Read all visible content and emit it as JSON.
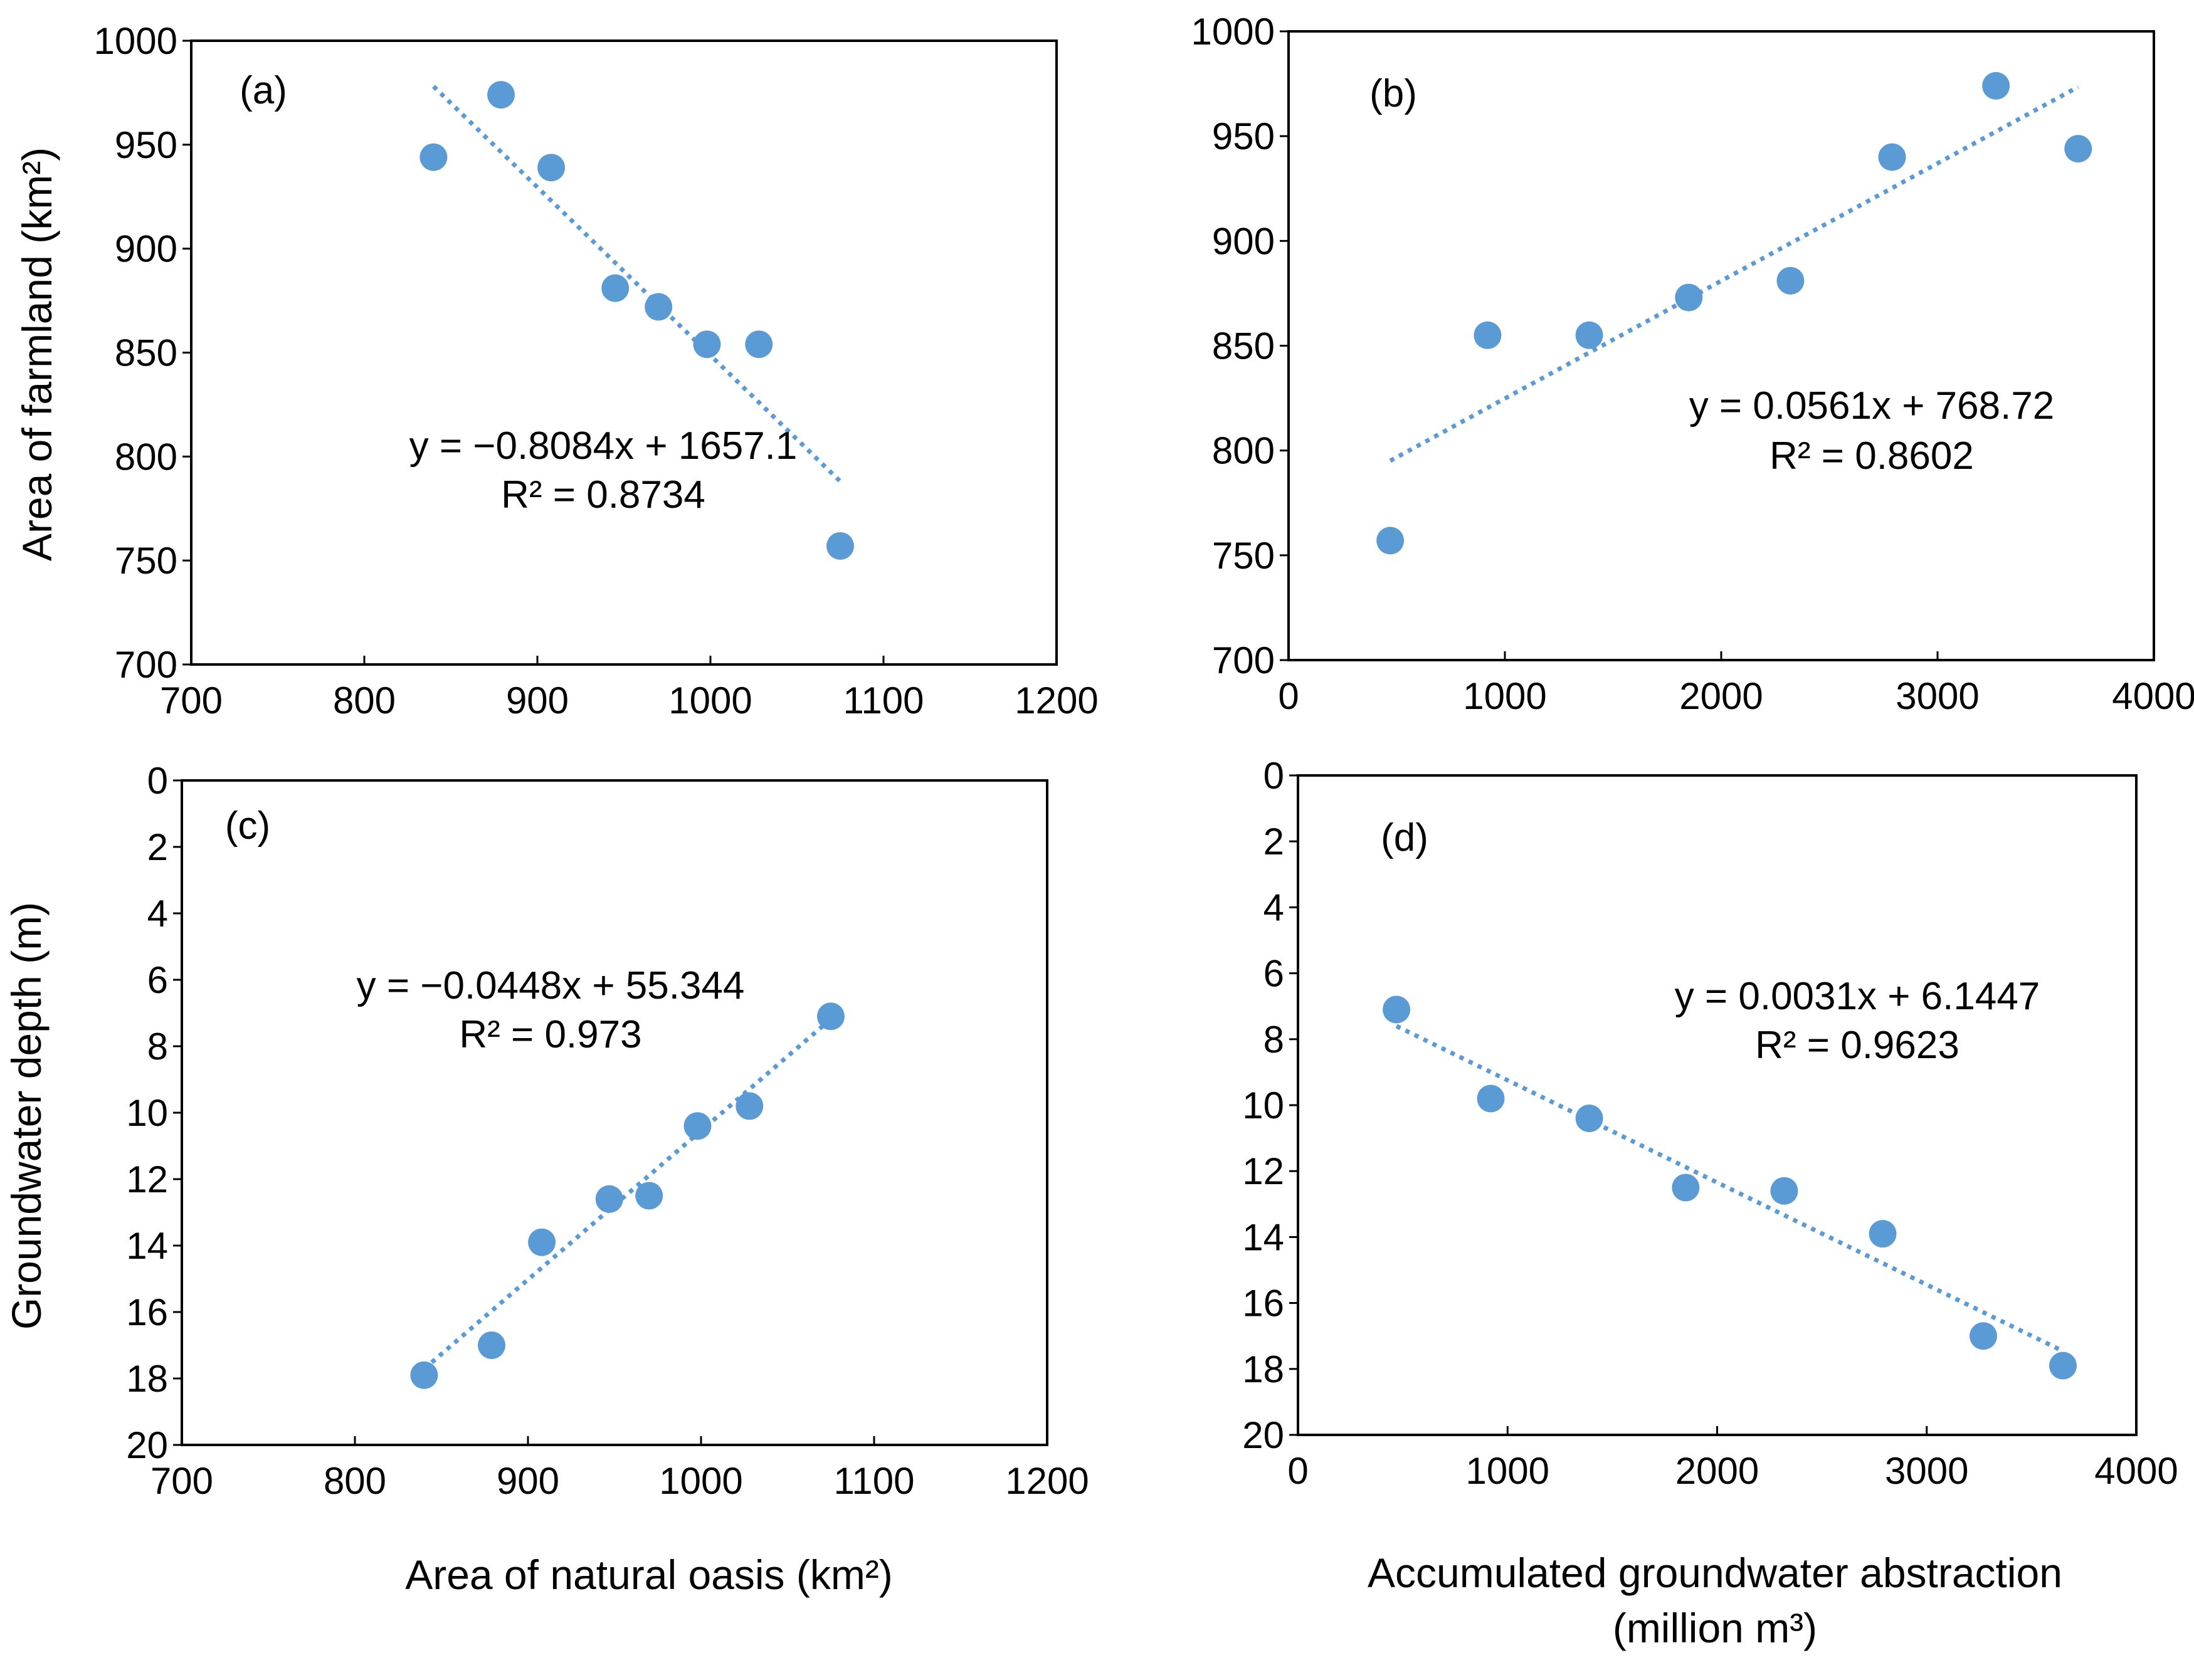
{
  "chart_data": [
    {
      "type": "scatter",
      "panel_label": "(a)",
      "ylabel": "Area of farmland (km²)",
      "xlabel": "",
      "xlim": [
        700,
        1200
      ],
      "ylim": [
        700,
        1000
      ],
      "xticks": [
        "700",
        "800",
        "900",
        "1000",
        "1100",
        "1200"
      ],
      "yticks": [
        "700",
        "750",
        "800",
        "850",
        "900",
        "950",
        "1000"
      ],
      "y_inverted": false,
      "x": [
        840,
        879,
        908,
        945,
        970,
        998,
        1028,
        1075
      ],
      "y": [
        944,
        974,
        939,
        881,
        872,
        854,
        854,
        757
      ],
      "trendline": {
        "x_range": [
          840,
          1075
        ],
        "slope": -0.8084,
        "intercept": 1657.1
      },
      "equation": "y = −0.8084x + 1657.1",
      "r_squared": "R² = 0.8734",
      "marker_color": "#5B9BD5"
    },
    {
      "type": "scatter",
      "panel_label": "(b)",
      "ylabel": "",
      "xlabel": "",
      "xlim": [
        0,
        4000
      ],
      "ylim": [
        700,
        1000
      ],
      "xticks": [
        "0",
        "1000",
        "2000",
        "3000",
        "4000"
      ],
      "yticks": [
        "700",
        "750",
        "800",
        "850",
        "900",
        "950",
        "1000"
      ],
      "y_inverted": false,
      "x": [
        470,
        920,
        1390,
        1850,
        2320,
        2790,
        3270,
        3650
      ],
      "y": [
        757,
        855,
        855,
        873,
        881,
        940,
        974,
        944
      ],
      "trendline": {
        "x_range": [
          470,
          3650
        ],
        "slope": 0.0561,
        "intercept": 768.72
      },
      "equation": "y = 0.0561x + 768.72",
      "r_squared": "R² = 0.8602",
      "marker_color": "#5B9BD5"
    },
    {
      "type": "scatter",
      "panel_label": "(c)",
      "ylabel": "Groundwater depth (m)",
      "xlabel": "Area of natural oasis (km²)",
      "xlim": [
        700,
        1200
      ],
      "ylim": [
        0,
        20
      ],
      "xticks": [
        "700",
        "800",
        "900",
        "1000",
        "1100",
        "1200"
      ],
      "yticks": [
        "0",
        "2",
        "4",
        "6",
        "8",
        "10",
        "12",
        "14",
        "16",
        "18",
        "20"
      ],
      "y_inverted": true,
      "x": [
        840,
        879,
        908,
        947,
        970,
        998,
        1028,
        1075
      ],
      "y": [
        17.9,
        17.0,
        13.9,
        12.6,
        12.5,
        10.4,
        9.8,
        7.1
      ],
      "trendline": {
        "x_range": [
          840,
          1075
        ],
        "slope": -0.0448,
        "intercept": 55.344
      },
      "equation": "y = −0.0448x + 55.344",
      "r_squared": "R² = 0.973",
      "marker_color": "#5B9BD5"
    },
    {
      "type": "scatter",
      "panel_label": "(d)",
      "ylabel": "",
      "xlabel": "Accumulated groundwater abstraction (million m³)",
      "xlim": [
        0,
        4000
      ],
      "ylim": [
        0,
        20
      ],
      "xticks": [
        "0",
        "1000",
        "2000",
        "3000",
        "4000"
      ],
      "yticks": [
        "0",
        "2",
        "4",
        "6",
        "8",
        "10",
        "12",
        "14",
        "16",
        "18",
        "20"
      ],
      "y_inverted": true,
      "x": [
        470,
        920,
        1390,
        1850,
        2320,
        2790,
        3270,
        3650
      ],
      "y": [
        7.1,
        9.8,
        10.4,
        12.5,
        12.6,
        13.9,
        17.0,
        17.9
      ],
      "trendline": {
        "x_range": [
          470,
          3650
        ],
        "slope": 0.0031,
        "intercept": 6.1447
      },
      "equation": "y = 0.0031x + 6.1447",
      "r_squared": "R² = 0.9623",
      "marker_color": "#5B9BD5"
    }
  ]
}
